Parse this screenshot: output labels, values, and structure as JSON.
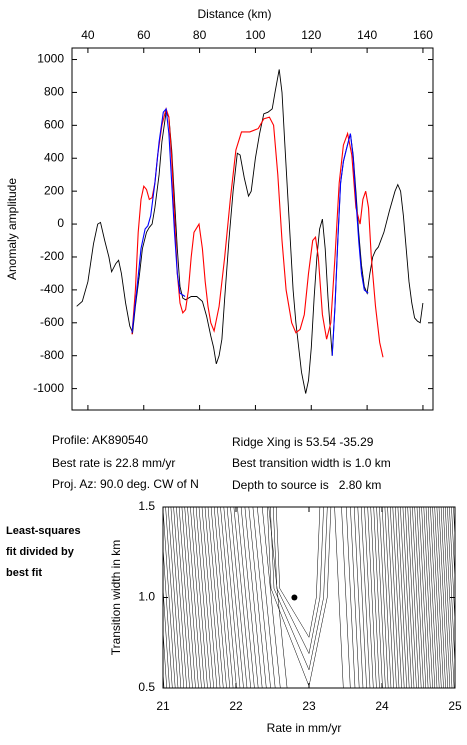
{
  "chart_data": [
    {
      "type": "line",
      "x_label": "Distance (km)",
      "y_label": "Anomaly amplitude",
      "x_axis_side": "top",
      "xlim": [
        34.3,
        163.6
      ],
      "ylim": [
        -1130,
        1070
      ],
      "xticks": [
        40,
        60,
        80,
        100,
        120,
        140,
        160
      ],
      "yticks": [
        -1000,
        -800,
        -600,
        -400,
        -200,
        0,
        200,
        400,
        600,
        800,
        1000
      ],
      "series": [
        {
          "color": "#000000",
          "x": [
            36,
            38,
            40,
            42,
            43.5,
            44.5,
            46,
            47.5,
            48.5,
            50,
            51,
            52,
            53.5,
            55,
            56,
            57,
            58.5,
            59.5,
            61,
            62,
            63,
            64,
            65.5,
            66.5,
            68,
            69,
            70,
            71,
            72,
            73,
            74,
            75,
            77,
            79,
            81,
            82.5,
            84,
            85,
            86,
            87,
            88,
            89,
            90.5,
            92,
            93.5,
            94.5,
            96,
            97.5,
            98.5,
            100,
            101.5,
            103,
            104.5,
            106,
            107,
            108.5,
            109.5,
            110.5,
            111.5,
            112.5,
            113.5,
            114.5,
            116.5,
            118,
            119,
            120,
            121,
            122,
            123,
            124,
            125,
            126,
            127.5,
            128.5,
            129.5,
            130.5,
            131.5,
            132.5,
            134,
            135,
            136,
            137,
            138,
            139,
            140,
            141,
            142,
            143,
            144,
            146,
            148,
            150,
            151,
            152,
            153,
            154,
            155,
            156,
            157,
            158,
            159,
            160
          ],
          "values": [
            -500,
            -470,
            -350,
            -120,
            0,
            10,
            -100,
            -200,
            -290,
            -240,
            -220,
            -300,
            -480,
            -620,
            -660,
            -500,
            -300,
            -150,
            -50,
            -20,
            0,
            100,
            300,
            500,
            680,
            650,
            450,
            150,
            -150,
            -380,
            -450,
            -460,
            -440,
            -440,
            -470,
            -560,
            -680,
            -750,
            -850,
            -800,
            -700,
            -450,
            -100,
            200,
            430,
            420,
            280,
            170,
            200,
            400,
            550,
            670,
            680,
            700,
            800,
            940,
            800,
            500,
            200,
            -100,
            -400,
            -600,
            -900,
            -1030,
            -950,
            -750,
            -450,
            -200,
            -30,
            30,
            -150,
            -450,
            -800,
            -500,
            -100,
            250,
            380,
            450,
            550,
            420,
            200,
            -50,
            -250,
            -380,
            -420,
            -300,
            -200,
            -160,
            -140,
            -50,
            80,
            200,
            240,
            200,
            50,
            -150,
            -350,
            -480,
            -570,
            -590,
            -600,
            -480
          ]
        },
        {
          "color": "#ff0000",
          "x": [
            55.8,
            57,
            58,
            59,
            60,
            61,
            62,
            63,
            64,
            65,
            66.5,
            68,
            69,
            70,
            71,
            72,
            73,
            74,
            75,
            76,
            77,
            78,
            79.8,
            81,
            82,
            83,
            84,
            85.2,
            87,
            89,
            91,
            93,
            95,
            98,
            101,
            103,
            105,
            106.5,
            108,
            109.5,
            111,
            113,
            114.5,
            116,
            117.5,
            119,
            120.5,
            121.5,
            122.5,
            124,
            125.5,
            127,
            128.5,
            130,
            131.5,
            133,
            134.5,
            136,
            137.5,
            138.5,
            139.5,
            140.5,
            141.5,
            143,
            144.5,
            145.7
          ],
          "values": [
            -670,
            -400,
            -50,
            150,
            230,
            210,
            150,
            160,
            250,
            420,
            600,
            700,
            650,
            400,
            50,
            -300,
            -480,
            -540,
            -520,
            -400,
            -200,
            -50,
            0,
            -150,
            -350,
            -500,
            -600,
            -650,
            -500,
            -200,
            150,
            450,
            560,
            560,
            580,
            640,
            650,
            600,
            300,
            -100,
            -400,
            -600,
            -660,
            -640,
            -550,
            -300,
            -100,
            -80,
            -200,
            -550,
            -700,
            -600,
            -200,
            250,
            480,
            550,
            420,
            100,
            0,
            150,
            200,
            100,
            -200,
            -500,
            -720,
            -810
          ]
        },
        {
          "color": "#0000ff",
          "x": [
            55.8,
            57.5,
            59,
            60.5,
            61.5,
            62.5,
            64,
            65.5,
            67,
            68,
            69,
            70,
            71,
            72,
            73,
            74.8,
            null,
            127.5,
            128.5,
            129.5,
            130.5,
            131.5,
            132.5,
            134,
            135,
            136,
            137,
            138,
            139,
            140.4
          ],
          "values": [
            -660,
            -400,
            -150,
            -30,
            -10,
            50,
            250,
            500,
            680,
            700,
            550,
            250,
            -50,
            -300,
            -420,
            -440,
            null,
            -800,
            -500,
            -100,
            250,
            380,
            450,
            550,
            400,
            150,
            -100,
            -300,
            -400,
            -420
          ]
        }
      ],
      "annotations": [
        "Profile: AK890540",
        "Ridge Xing is 53.54 -35.29",
        "Best rate is 22.8 mm/yr",
        "Best transition width is 1.0 km",
        "Proj. Az: 90.0 deg. CW of N",
        "Depth to source is   2.80 km"
      ]
    },
    {
      "type": "contour",
      "x_label": "Rate in mm/yr",
      "y_label": "Transition width in km",
      "x_axis_side": "bottom",
      "xlim": [
        21,
        25
      ],
      "ylim": [
        0.5,
        1.5
      ],
      "xticks": [
        21,
        22,
        23,
        24,
        25
      ],
      "yticks": [
        {
          "value": 0.5,
          "label": "0.5"
        },
        {
          "value": 1,
          "label": "1.0"
        },
        {
          "value": 1.5,
          "label": "1.5"
        }
      ],
      "point": {
        "x": 22.8,
        "y": 1
      },
      "note": [
        "Least-squares",
        "fit divided by",
        "best fit"
      ]
    }
  ]
}
